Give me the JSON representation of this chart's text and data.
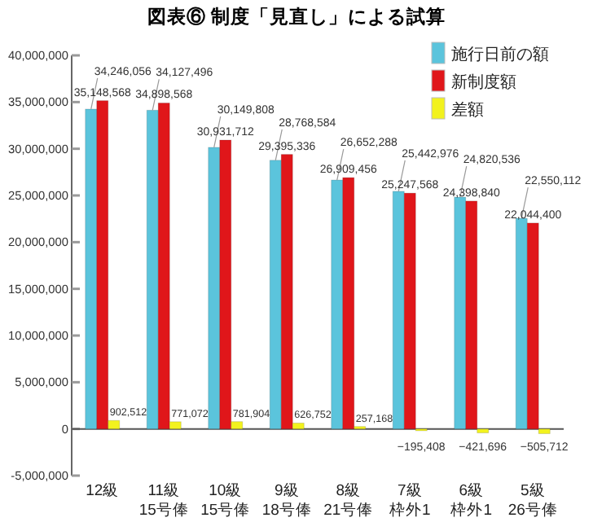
{
  "chart_data": {
    "type": "bar",
    "title": "図表⑥ 制度「見直し」による試算",
    "categories": [
      "12級",
      "11級15号俸",
      "10級15号俸",
      "9級18号俸",
      "8級21号俸",
      "7級枠外1",
      "6級枠外1",
      "5級26号俸"
    ],
    "series": [
      {
        "name": "施行日前の額",
        "color": "#5bc4dc",
        "values": [
          34246056,
          34127496,
          30149808,
          28768584,
          26652288,
          25442976,
          24820536,
          22550112
        ],
        "value_labels": [
          "34,246,056",
          "34,127,496",
          "30,149,808",
          "28,768,584",
          "26,652,288",
          "25,442,976",
          "24,820,536",
          "22,550,112"
        ]
      },
      {
        "name": "新制度額",
        "color": "#e0161a",
        "values": [
          35148568,
          34898568,
          30931712,
          29395336,
          26909456,
          25247568,
          24398840,
          22044400
        ],
        "value_labels": [
          "35,148,568",
          "34,898,568",
          "30,931,712",
          "29,395,336",
          "26,909,456",
          "25,247,568",
          "24,398,840",
          "22,044,400"
        ]
      },
      {
        "name": "差額",
        "color": "#f2f21e",
        "values": [
          902512,
          771072,
          781904,
          626752,
          257168,
          -195408,
          -421696,
          -505712
        ],
        "value_labels": [
          "902,512",
          "771,072",
          "781,904",
          "626,752",
          "257,168",
          "−195,408",
          "−421,696",
          "−505,712"
        ]
      }
    ],
    "ylim": [
      -5000000,
      40000000
    ],
    "yticks": [
      {
        "value": -5000000,
        "label": "-5,000,000"
      },
      {
        "value": 0,
        "label": "0"
      },
      {
        "value": 5000000,
        "label": "5,000,000"
      },
      {
        "value": 10000000,
        "label": "10,000,000"
      },
      {
        "value": 15000000,
        "label": "15,000,000"
      },
      {
        "value": 20000000,
        "label": "20,000,000"
      },
      {
        "value": 25000000,
        "label": "25,000,000"
      },
      {
        "value": 30000000,
        "label": "30,000,000"
      },
      {
        "value": 35000000,
        "label": "35,000,000"
      },
      {
        "value": 40000000,
        "label": "40,000,000"
      }
    ],
    "legend": "top right"
  }
}
